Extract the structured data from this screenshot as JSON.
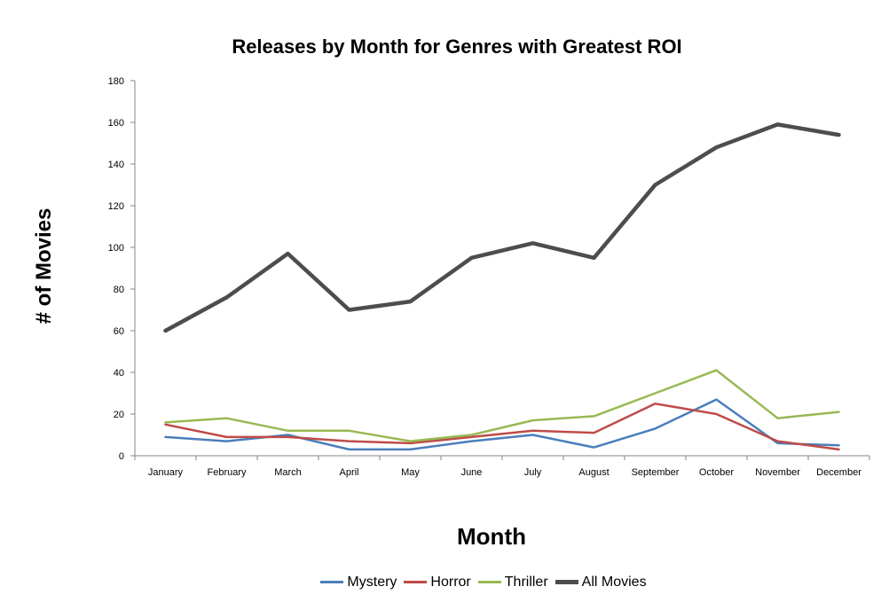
{
  "chart_data": {
    "type": "line",
    "title": "Releases by Month for Genres with Greatest ROI",
    "xlabel": "Month",
    "ylabel": "# of Movies",
    "ylim": [
      0,
      180
    ],
    "yticks": [
      0,
      20,
      40,
      60,
      80,
      100,
      120,
      140,
      160,
      180
    ],
    "grid": false,
    "legend_position": "bottom",
    "categories": [
      "January",
      "February",
      "March",
      "April",
      "May",
      "June",
      "July",
      "August",
      "September",
      "October",
      "November",
      "December"
    ],
    "series": [
      {
        "name": "Mystery",
        "color": "#4a7ebb",
        "values": [
          9,
          7,
          10,
          3,
          3,
          7,
          10,
          4,
          13,
          27,
          6,
          5
        ]
      },
      {
        "name": "Horror",
        "color": "#be4b48",
        "values": [
          15,
          9,
          9,
          7,
          6,
          9,
          12,
          11,
          25,
          20,
          7,
          3
        ]
      },
      {
        "name": "Thriller",
        "color": "#98b954",
        "values": [
          16,
          18,
          12,
          12,
          7,
          10,
          17,
          19,
          30,
          41,
          18,
          21
        ]
      },
      {
        "name": "All Movies",
        "color": "#4d4d4d",
        "values": [
          60,
          76,
          97,
          70,
          74,
          95,
          102,
          95,
          130,
          148,
          159,
          154
        ]
      }
    ]
  }
}
